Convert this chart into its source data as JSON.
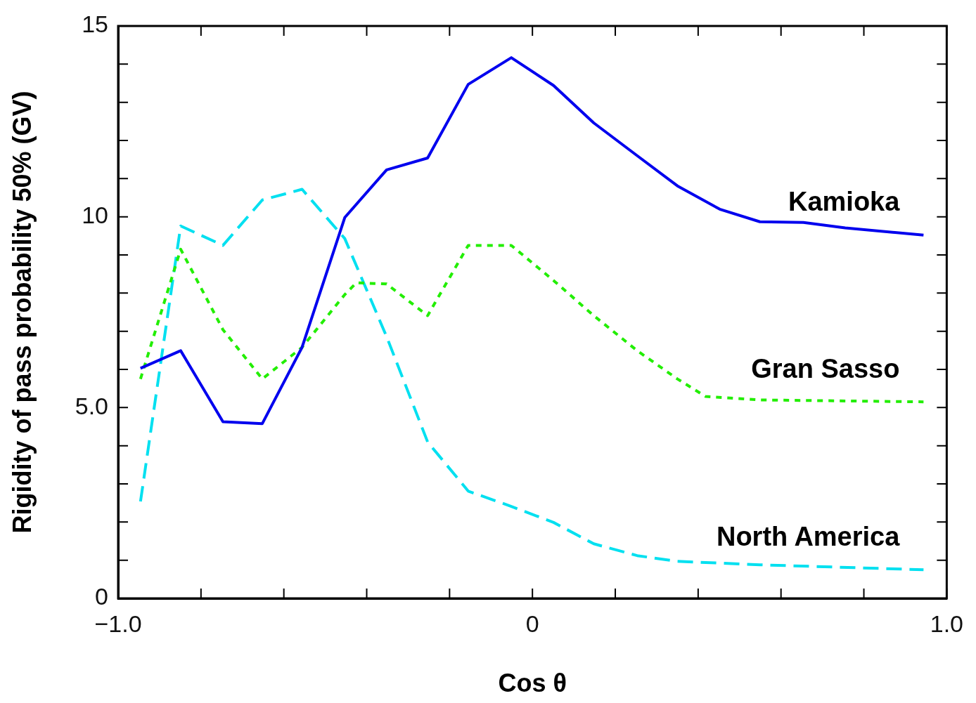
{
  "chart_data": {
    "type": "line",
    "xlabel": "Cos θ",
    "ylabel": "Rigidity of pass probability 50% (GV)",
    "xlim": [
      -1,
      1
    ],
    "ylim": [
      0,
      15
    ],
    "xticks": [
      {
        "value": -1,
        "label": "−1.0"
      },
      {
        "value": -0.8,
        "label": null
      },
      {
        "value": -0.6,
        "label": null
      },
      {
        "value": -0.4,
        "label": null
      },
      {
        "value": -0.2,
        "label": null
      },
      0,
      {
        "value": 0.2,
        "label": null
      },
      {
        "value": 0.4,
        "label": null
      },
      {
        "value": 0.6,
        "label": null
      },
      {
        "value": 0.8,
        "label": null
      },
      {
        "value": 1,
        "label": "1.0"
      }
    ],
    "yticks": [
      0,
      {
        "value": 1,
        "label": null
      },
      {
        "value": 2,
        "label": null
      },
      {
        "value": 3,
        "label": null
      },
      {
        "value": 4,
        "label": null
      },
      {
        "value": 5,
        "label": "5.0"
      },
      {
        "value": 6,
        "label": null
      },
      {
        "value": 7,
        "label": null
      },
      {
        "value": 8,
        "label": null
      },
      {
        "value": 9,
        "label": null
      },
      10,
      {
        "value": 11,
        "label": null
      },
      {
        "value": 12,
        "label": null
      },
      {
        "value": 13,
        "label": null
      },
      {
        "value": 14,
        "label": null
      },
      15
    ],
    "grid": false,
    "legend": false,
    "marker": "none",
    "series": [
      {
        "name": "Kamioka",
        "color": "#0000ee",
        "line_style": "solid",
        "x": [
          -0.946,
          -0.849,
          -0.747,
          -0.652,
          -0.556,
          -0.453,
          -0.352,
          -0.253,
          -0.155,
          -0.051,
          0.051,
          0.148,
          0.253,
          0.35,
          0.452,
          0.549,
          0.654,
          0.755,
          0.944
        ],
        "values": [
          6.03,
          6.49,
          4.63,
          4.58,
          6.58,
          9.98,
          11.23,
          11.54,
          13.47,
          14.17,
          13.44,
          12.46,
          11.6,
          10.81,
          10.2,
          9.87,
          9.85,
          9.71,
          9.52
        ]
      },
      {
        "name": "Gran Sasso",
        "color": "#22ee00",
        "line_style": "dotted",
        "x": [
          -0.946,
          -0.849,
          -0.747,
          -0.652,
          -0.556,
          -0.453,
          -0.425,
          -0.352,
          -0.253,
          -0.155,
          -0.051,
          0.051,
          0.148,
          0.253,
          0.35,
          0.418,
          0.549,
          0.944
        ],
        "values": [
          5.75,
          9.15,
          7.04,
          5.75,
          6.58,
          7.96,
          8.27,
          8.24,
          7.41,
          9.25,
          9.25,
          8.33,
          7.41,
          6.49,
          5.75,
          5.29,
          5.2,
          5.15
        ]
      },
      {
        "name": "North America",
        "color": "#00e0f0",
        "line_style": "dashed",
        "x": [
          -0.946,
          -0.849,
          -0.747,
          -0.652,
          -0.556,
          -0.453,
          -0.352,
          -0.253,
          -0.155,
          -0.051,
          0.051,
          0.148,
          0.253,
          0.35,
          0.549,
          0.944
        ],
        "values": [
          2.54,
          9.76,
          9.25,
          10.44,
          10.72,
          9.43,
          6.86,
          4.1,
          2.81,
          2.41,
          1.99,
          1.43,
          1.12,
          0.97,
          0.88,
          0.75
        ]
      }
    ]
  }
}
